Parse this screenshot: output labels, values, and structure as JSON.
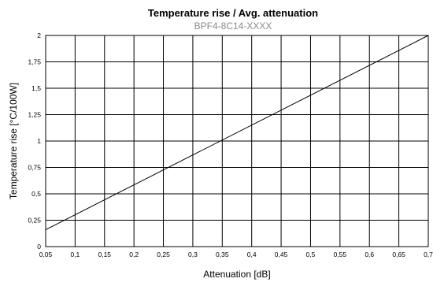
{
  "chart_data": {
    "type": "line",
    "title": "Temperature rise / Avg. attenuation",
    "subtitle": "BPF4-8C14-XXXX",
    "xlabel": "Attenuation [dB]",
    "ylabel": "Temperature rise [°C/100W]",
    "xlim": [
      0.05,
      0.7
    ],
    "ylim": [
      0,
      2
    ],
    "grid": true,
    "x_ticks": [
      0.05,
      0.1,
      0.15,
      0.2,
      0.25,
      0.3,
      0.35,
      0.4,
      0.45,
      0.5,
      0.55,
      0.6,
      0.65,
      0.7
    ],
    "x_tick_labels": [
      "0,05",
      "0,1",
      "0,15",
      "0,2",
      "0,25",
      "0,3",
      "0,35",
      "0,4",
      "0,45",
      "0,5",
      "0,55",
      "0,6",
      "0,65",
      "0,7"
    ],
    "y_ticks": [
      0,
      0.25,
      0.5,
      0.75,
      1,
      1.25,
      1.5,
      1.75,
      2
    ],
    "y_tick_labels": [
      "0",
      "0,25",
      "0,5",
      "0,75",
      "1",
      "1,25",
      "1,5",
      "1,75",
      "2"
    ],
    "series": [
      {
        "color": "#000000",
        "x": [
          0.05,
          0.7
        ],
        "y": [
          0.16,
          2.0
        ]
      }
    ]
  }
}
